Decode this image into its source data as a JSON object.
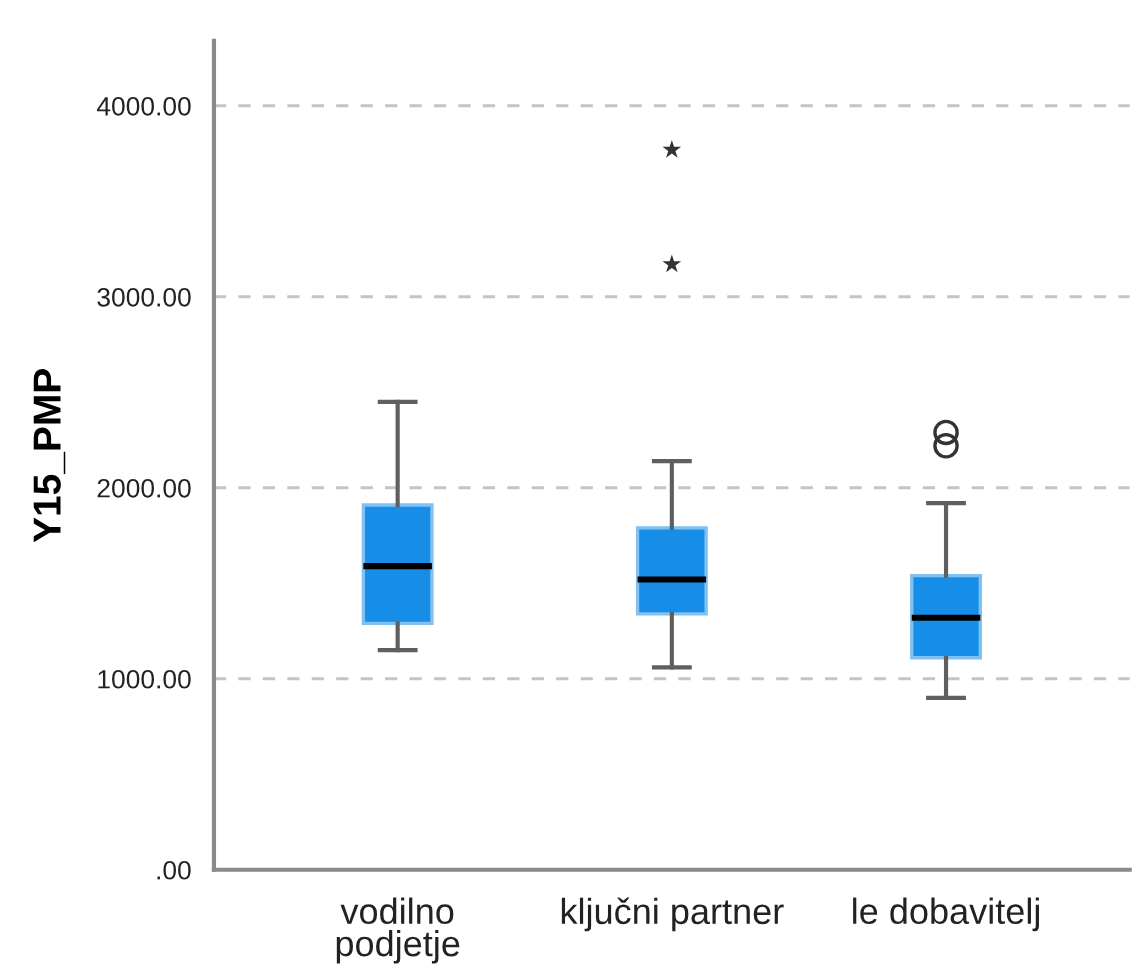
{
  "chart_data": {
    "type": "box",
    "ylabel": "Y15_PMP",
    "categories": [
      "vodilno\npodjetje",
      "ključni partner",
      "le dobavitelj"
    ],
    "ylim": [
      0,
      4340
    ],
    "yticks": [
      {
        "value": 0,
        "label": ".00"
      },
      {
        "value": 1000,
        "label": "1000.00"
      },
      {
        "value": 2000,
        "label": "2000.00"
      },
      {
        "value": 3000,
        "label": "3000.00"
      },
      {
        "value": 4000,
        "label": "4000.00"
      }
    ],
    "grid": "y",
    "series": [
      {
        "color": "#168ee8",
        "marker": "circle",
        "boxes": [
          {
            "low": 1150,
            "q1": 1290,
            "median": 1590,
            "q3": 1910,
            "high": 2450
          },
          {
            "low": 1060,
            "q1": 1340,
            "median": 1520,
            "q3": 1790,
            "high": 2140
          },
          {
            "low": 900,
            "q1": 1110,
            "median": 1320,
            "q3": 1540,
            "high": 1920,
            "outliers": [
              2290,
              2220
            ]
          }
        ]
      },
      {
        "type": "scatter",
        "color": "#333333",
        "marker": "star",
        "x": [
          "ključni partner",
          "ključni partner"
        ],
        "values": [
          3770,
          3170
        ]
      }
    ]
  }
}
